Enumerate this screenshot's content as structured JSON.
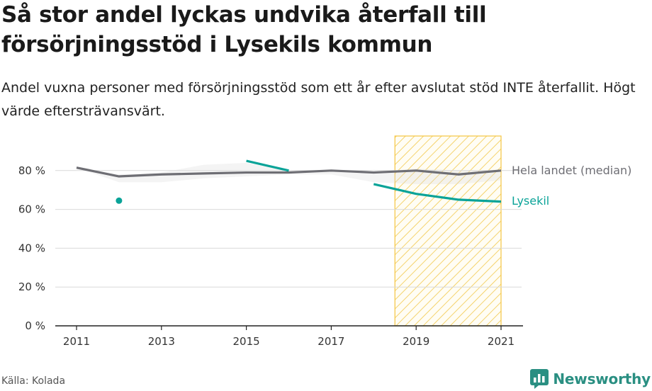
{
  "title": "Så stor andel lyckas undvika återfall till försörjningsstöd i Lysekils kommun",
  "subtitle": "Andel vuxna personer med försörjningsstöd som ett år efter avslutat stöd INTE återfallit. Högt värde eftersträvansvärt.",
  "source": "Källa: Kolada",
  "brand": "Newsworthy",
  "colors": {
    "national": "#6e6e74",
    "lysekil": "#0aa398",
    "band": "#dcdcdc",
    "highlight": "#f5c542",
    "grid": "#d9d9d9"
  },
  "chart_data": {
    "type": "line",
    "x": [
      2011,
      2012,
      2013,
      2014,
      2015,
      2016,
      2017,
      2018,
      2019,
      2020,
      2021
    ],
    "xticks": [
      "2011",
      "2013",
      "2015",
      "2017",
      "2019",
      "2021"
    ],
    "yticks": [
      "0 %",
      "20 %",
      "40 %",
      "60 %",
      "80 %"
    ],
    "ylim": [
      0,
      100
    ],
    "grid": true,
    "series": [
      {
        "name": "Hela landet (median)",
        "color": "#6e6e74",
        "values": [
          81.5,
          77,
          78,
          78.5,
          79,
          79,
          80,
          79,
          80,
          78,
          80
        ]
      },
      {
        "name": "Lysekil",
        "color": "#0aa398",
        "values": [
          null,
          64.5,
          null,
          null,
          85,
          80,
          null,
          73,
          68,
          65,
          64
        ]
      }
    ],
    "band": {
      "lower": [
        81.5,
        74,
        74,
        76,
        77,
        78,
        78,
        74,
        73,
        73,
        75
      ],
      "upper": [
        81.5,
        78,
        79,
        83,
        84,
        80,
        80,
        79,
        81,
        80,
        80
      ]
    },
    "highlight_range": [
      2018.5,
      2021
    ]
  }
}
